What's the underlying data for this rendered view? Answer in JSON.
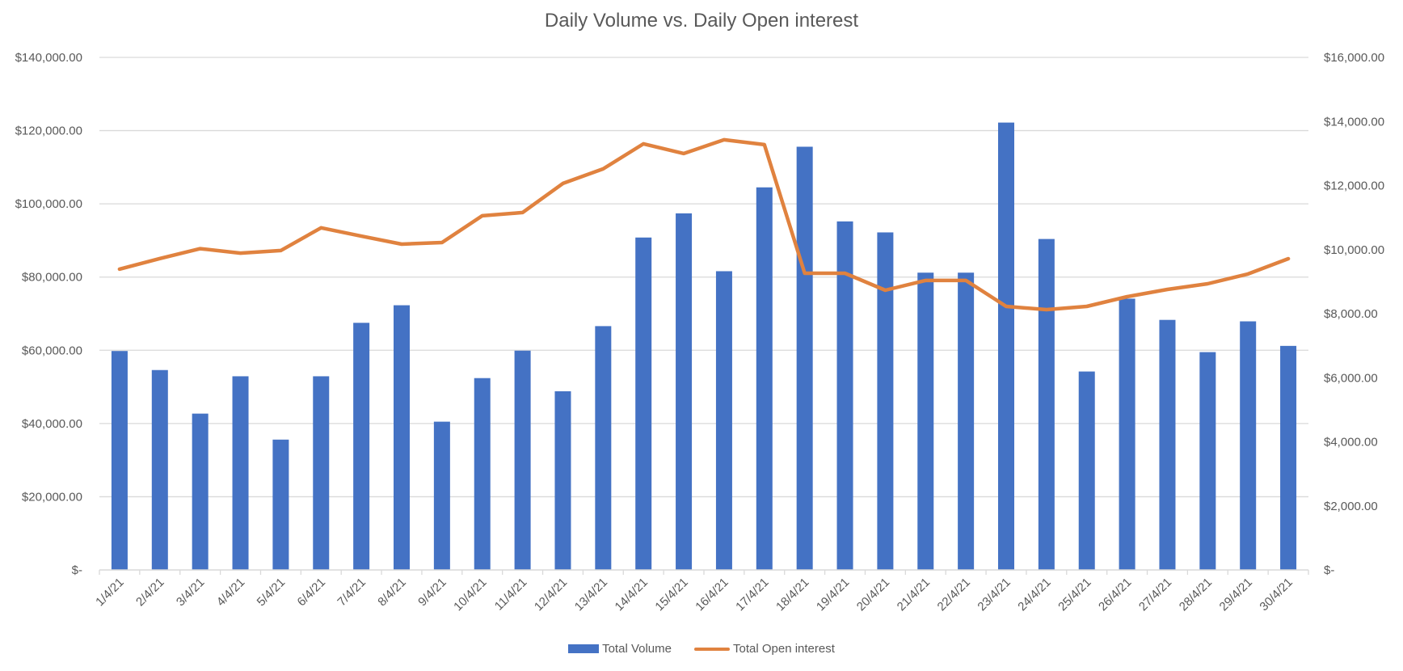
{
  "chart_data": {
    "type": "bar+line",
    "title": "Daily Volume vs. Daily Open interest",
    "xlabel": "",
    "ylabel": "",
    "ylabel_right": "",
    "categories": [
      "1/4/21",
      "2/4/21",
      "3/4/21",
      "4/4/21",
      "5/4/21",
      "6/4/21",
      "7/4/21",
      "8/4/21",
      "9/4/21",
      "10/4/21",
      "11/4/21",
      "12/4/21",
      "13/4/21",
      "14/4/21",
      "15/4/21",
      "16/4/21",
      "17/4/21",
      "18/4/21",
      "19/4/21",
      "20/4/21",
      "21/4/21",
      "22/4/21",
      "23/4/21",
      "24/4/21",
      "25/4/21",
      "26/4/21",
      "27/4/21",
      "28/4/21",
      "29/4/21",
      "30/4/21"
    ],
    "series": [
      {
        "name": "Total Volume",
        "type": "bar",
        "axis": "left",
        "color": "#4472C4",
        "values": [
          59800,
          54600,
          42700,
          52900,
          35600,
          52900,
          67500,
          72300,
          40500,
          52400,
          59900,
          48800,
          66600,
          90800,
          97400,
          81600,
          104500,
          115600,
          95200,
          92200,
          81200,
          81200,
          122200,
          90400,
          54200,
          74100,
          68300,
          59500,
          67900,
          61200
        ]
      },
      {
        "name": "Total Open interest",
        "type": "line",
        "axis": "right",
        "color": "#E0823F",
        "values": [
          9390,
          9720,
          10030,
          9890,
          9970,
          10680,
          10420,
          10170,
          10220,
          11055,
          11156,
          12065,
          12519,
          13302,
          12999,
          13428,
          13276,
          9263,
          9263,
          8733,
          9036,
          9036,
          8228,
          8127,
          8228,
          8531,
          8758,
          8935,
          9238,
          9717
        ]
      }
    ],
    "ylim": [
      0,
      140000
    ],
    "ylim_right": [
      0,
      16000
    ],
    "yticks": [
      0,
      20000,
      40000,
      60000,
      80000,
      100000,
      120000,
      140000
    ],
    "ytick_labels": [
      "$-",
      "$20,000.00",
      "$40,000.00",
      "$60,000.00",
      "$80,000.00",
      "$100,000.00",
      "$120,000.00",
      "$140,000.00"
    ],
    "yticks_right": [
      0,
      2000,
      4000,
      6000,
      8000,
      10000,
      12000,
      14000,
      16000
    ],
    "ytick_labels_right": [
      "$-",
      "$2,000.00",
      "$4,000.00",
      "$6,000.00",
      "$8,000.00",
      "$10,000.00",
      "$12,000.00",
      "$14,000.00",
      "$16,000.00"
    ],
    "grid": true,
    "legend_position": "bottom",
    "colors": {
      "bar": "#4472C4",
      "line": "#E0823F",
      "grid": "#D9D9D9",
      "text": "#595959"
    }
  },
  "legend": {
    "items": [
      {
        "label": "Total Volume"
      },
      {
        "label": "Total Open interest"
      }
    ]
  }
}
